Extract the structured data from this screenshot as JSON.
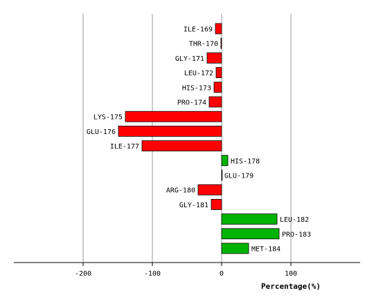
{
  "chart_data": {
    "type": "bar",
    "orientation": "horizontal",
    "categories": [
      "ILE-169",
      "THR-170",
      "GLY-171",
      "LEU-172",
      "HIS-173",
      "PRO-174",
      "LYS-175",
      "GLU-176",
      "ILE-177",
      "HIS-178",
      "GLU-179",
      "ARG-180",
      "GLY-181",
      "LEU-182",
      "PRO-183",
      "MET-184"
    ],
    "values": [
      -9,
      -1,
      -21,
      -8,
      -11,
      -18,
      -139,
      -149,
      -115,
      9,
      0,
      -34,
      -15,
      80,
      83,
      39
    ],
    "xlabel": "Percentage(%)",
    "ticks": [
      -200,
      -100,
      0,
      100
    ],
    "tick_labels": [
      "-200",
      "-100",
      "0",
      "100"
    ],
    "xlim": [
      -300,
      200
    ],
    "grid": true,
    "colors": {
      "positive": "#00b300",
      "negative": "#ff0000",
      "bar_stroke": "#000000",
      "grid": "#999999"
    }
  }
}
